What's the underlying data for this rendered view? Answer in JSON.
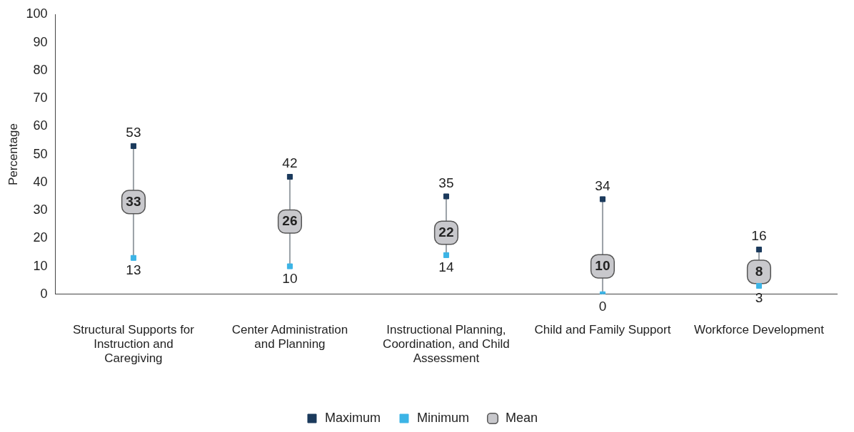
{
  "chart_data": {
    "type": "scatter",
    "ylabel": "Percentage",
    "categories": [
      "Structural Supports for Instruction and Caregiving",
      "Center Administration and Planning",
      "Instructional Planning, Coordination, and Child Assessment",
      "Child and Family Support",
      "Workforce Development"
    ],
    "series": [
      {
        "name": "Maximum",
        "color": "#1b3a5c",
        "marker": "square",
        "values": [
          53,
          42,
          35,
          34,
          16
        ]
      },
      {
        "name": "Minimum",
        "color": "#3cb4e6",
        "marker": "square",
        "values": [
          13,
          10,
          14,
          0,
          3
        ]
      },
      {
        "name": "Mean",
        "color": "#c8c8cc",
        "marker": "square",
        "values": [
          33,
          26,
          22,
          10,
          8
        ]
      }
    ],
    "ylim": [
      0,
      100
    ],
    "yticks": [
      0,
      10,
      20,
      30,
      40,
      50,
      60,
      70,
      80,
      90,
      100
    ],
    "grid": false,
    "legend": "bottom",
    "data_labels": true
  }
}
